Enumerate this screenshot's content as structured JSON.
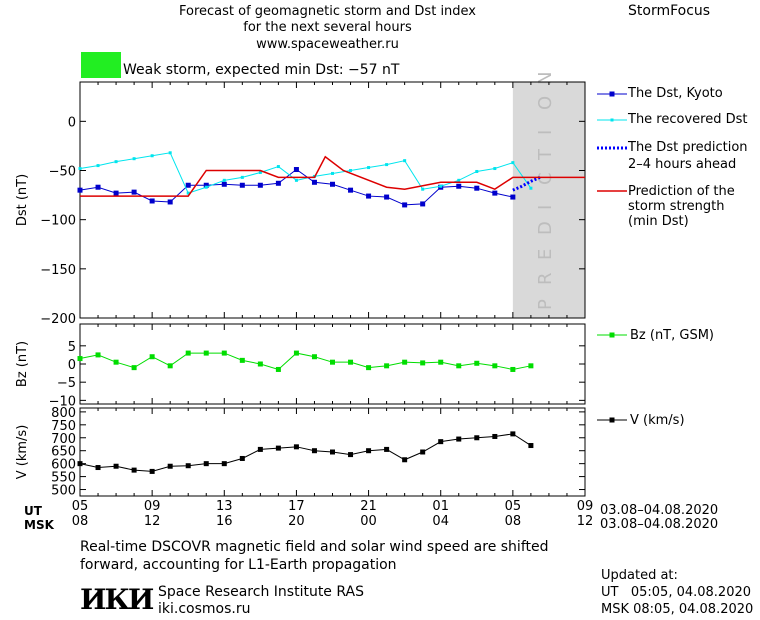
{
  "header": {
    "title_line1": "Forecast of geomagnetic storm and Dst index",
    "title_line2": "for the next several hours",
    "url": "www.spaceweather.ru",
    "brand": "StormFocus",
    "storm_label": "Weak storm, expected min Dst: −57 nT",
    "storm_color": "#22ee22"
  },
  "legend": {
    "dst_kyoto": "The Dst, Kyoto",
    "recovered": "The recovered Dst",
    "prediction_l1": "The Dst prediction",
    "prediction_l2": "2–4 hours ahead",
    "strength_l1": "Prediction of the",
    "strength_l2": "storm strength",
    "strength_l3": "(min Dst)",
    "bz": "Bz (nT, GSM)",
    "v": "V (km/s)"
  },
  "prediction_label": "PREDICTION",
  "time_axis": {
    "ut_label": "UT",
    "msk_label": "MSK",
    "ut_ticks": [
      "05",
      "09",
      "13",
      "17",
      "21",
      "01",
      "05",
      "09"
    ],
    "msk_ticks": [
      "08",
      "12",
      "16",
      "20",
      "00",
      "04",
      "08",
      "12"
    ],
    "ut_range": "03.08–04.08.2020",
    "msk_range": "03.08–04.08.2020"
  },
  "footer": {
    "note_l1": "Real-time DSCOVR magnetic field and solar wind speed are shifted",
    "note_l2": "forward, accounting for L1-Earth propagation",
    "institute": "Space Research Institute RAS",
    "site": "iki.cosmos.ru",
    "logo": "ИКИ",
    "updated_label": "Updated at:",
    "updated_ut": "UT   05:05, 04.08.2020",
    "updated_msk": "MSK 08:05, 04.08.2020"
  },
  "colors": {
    "dst": "#0000cc",
    "recovered": "#00e5ee",
    "prediction": "#0000ff",
    "strength": "#dd0000",
    "bz": "#00dd00",
    "v": "#000000",
    "shade": "#d9d9d9"
  },
  "chart_data": [
    {
      "type": "line",
      "ylabel": "Dst (nT)",
      "ylim": [
        -200,
        40
      ],
      "yticks": [
        0,
        -50,
        -100,
        -150,
        -200
      ],
      "xlim": [
        0,
        28
      ],
      "prediction_start": 24,
      "series": [
        {
          "name": "The Dst, Kyoto",
          "x": [
            0,
            1,
            2,
            3,
            4,
            5,
            6,
            7,
            8,
            9,
            10,
            11,
            12,
            13,
            14,
            15,
            16,
            17,
            18,
            19,
            20,
            21,
            22,
            23,
            24
          ],
          "values": [
            -70,
            -67,
            -73,
            -72,
            -81,
            -82,
            -65,
            -65,
            -64,
            -65,
            -65,
            -63,
            -49,
            -62,
            -64,
            -70,
            -76,
            -77,
            -85,
            -84,
            -67,
            -66,
            -68,
            -73,
            -77
          ]
        },
        {
          "name": "The recovered Dst",
          "x": [
            0,
            1,
            2,
            3,
            4,
            5,
            6,
            7,
            8,
            9,
            10,
            11,
            12,
            13,
            14,
            15,
            16,
            17,
            18,
            19,
            20,
            21,
            22,
            23,
            24,
            25
          ],
          "values": [
            -48,
            -45,
            -41,
            -38,
            -35,
            -32,
            -73,
            -67,
            -60,
            -57,
            -52,
            -46,
            -60,
            -56,
            -53,
            -50,
            -47,
            -44,
            -40,
            -69,
            -66,
            -60,
            -51,
            -48,
            -42,
            -68
          ]
        },
        {
          "name": "The Dst prediction",
          "x": [
            24,
            24.5,
            25,
            25.5
          ],
          "values": [
            -70,
            -66,
            -61,
            -57
          ]
        },
        {
          "name": "Prediction of the storm strength",
          "x": [
            0,
            6,
            7,
            10,
            11,
            13,
            13.6,
            14.6,
            17,
            18,
            20,
            22,
            23,
            24,
            28
          ],
          "values": [
            -76,
            -76,
            -50,
            -50,
            -57,
            -57,
            -36,
            -50,
            -67,
            -69,
            -62,
            -62,
            -69,
            -57,
            -57
          ]
        }
      ]
    },
    {
      "type": "line",
      "ylabel": "Bz (nT)",
      "ylim": [
        -11,
        11
      ],
      "yticks": [
        5,
        0,
        -5,
        -10
      ],
      "series": [
        {
          "name": "Bz (nT, GSM)",
          "x": [
            0,
            1,
            2,
            3,
            4,
            5,
            6,
            7,
            8,
            9,
            10,
            11,
            12,
            13,
            14,
            15,
            16,
            17,
            18,
            19,
            20,
            21,
            22,
            23,
            24,
            25
          ],
          "values": [
            1.5,
            2.5,
            0.5,
            -1,
            2,
            -0.5,
            3,
            3,
            3,
            1,
            0,
            -1.5,
            3,
            2,
            0.5,
            0.5,
            -1,
            -0.5,
            0.5,
            0.3,
            0.5,
            -0.5,
            0.2,
            -0.5,
            -1.5,
            -0.5
          ]
        }
      ]
    },
    {
      "type": "line",
      "ylabel": "V (km/s)",
      "ylim": [
        475,
        815
      ],
      "yticks": [
        800,
        750,
        700,
        650,
        600,
        550,
        500
      ],
      "series": [
        {
          "name": "V (km/s)",
          "x": [
            0,
            1,
            2,
            3,
            4,
            5,
            6,
            7,
            8,
            9,
            10,
            11,
            12,
            13,
            14,
            15,
            16,
            17,
            18,
            19,
            20,
            21,
            22,
            23,
            24,
            25
          ],
          "values": [
            600,
            585,
            590,
            575,
            570,
            590,
            592,
            600,
            600,
            620,
            655,
            660,
            665,
            650,
            645,
            635,
            650,
            655,
            615,
            645,
            685,
            695,
            700,
            705,
            715,
            670
          ]
        }
      ]
    }
  ]
}
